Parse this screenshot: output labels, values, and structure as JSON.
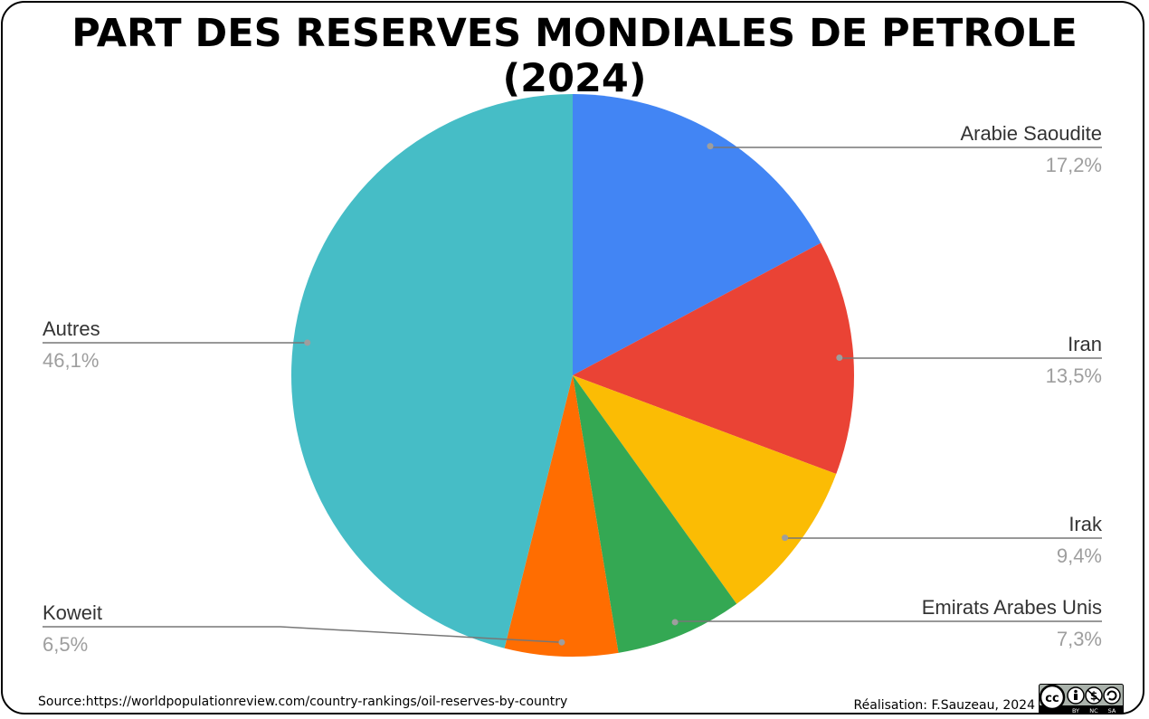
{
  "title": "PART DES RESERVES MONDIALES DE PETROLE (2024)",
  "source": "Source:https://worldpopulationreview.com/country-rankings/oil-reserves-by-country",
  "credit": "Réalisation: F.Sauzeau, 2024",
  "license_badge": {
    "icon": "cc-by-nc-sa-icon",
    "labels": [
      "BY",
      "NC",
      "SA"
    ]
  },
  "chart_data": {
    "type": "pie",
    "start_angle_deg": 0,
    "direction": "clockwise",
    "slices": [
      {
        "label": "Arabie Saoudite",
        "value": 17.2,
        "display": "17,2%",
        "color": "#4285F4"
      },
      {
        "label": "Iran",
        "value": 13.5,
        "display": "13,5%",
        "color": "#EA4335"
      },
      {
        "label": "Irak",
        "value": 9.4,
        "display": "9,4%",
        "color": "#FBBC04"
      },
      {
        "label": "Emirats Arabes Unis",
        "value": 7.3,
        "display": "7,3%",
        "color": "#34A853"
      },
      {
        "label": "Koweit",
        "value": 6.5,
        "display": "6,5%",
        "color": "#FF6D01"
      },
      {
        "label": "Autres",
        "value": 46.1,
        "display": "46,1%",
        "color": "#46BDC6"
      }
    ]
  }
}
